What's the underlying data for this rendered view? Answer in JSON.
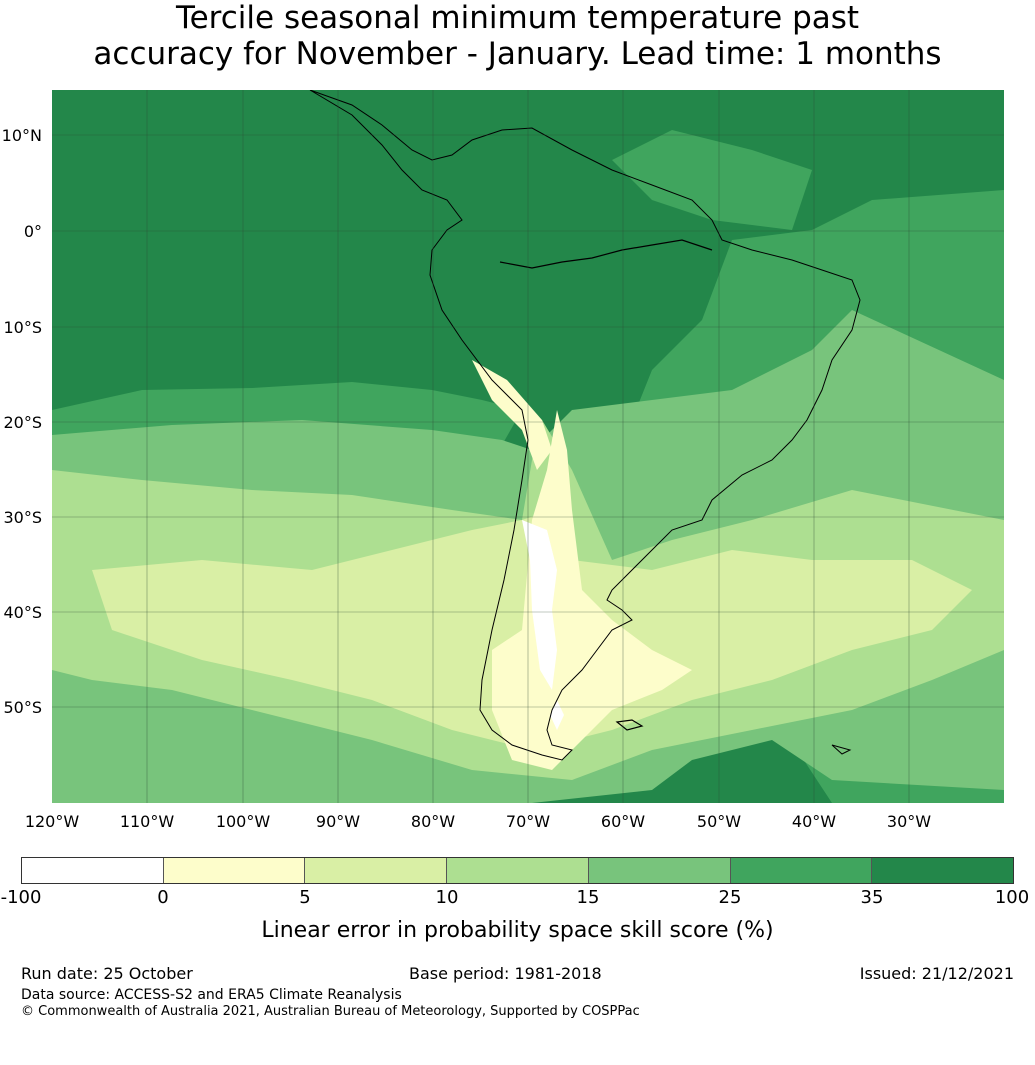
{
  "title": {
    "line1": "Tercile seasonal minimum temperature past",
    "line2": "accuracy for November - January. Lead time: 1 months"
  },
  "map": {
    "lat_ticks": [
      "10°N",
      "0°",
      "10°S",
      "20°S",
      "30°S",
      "40°S",
      "50°S"
    ],
    "lon_ticks": [
      "120°W",
      "110°W",
      "100°W",
      "90°W",
      "80°W",
      "70°W",
      "60°W",
      "50°W",
      "40°W",
      "30°W"
    ],
    "colors": {
      "above_35": "#23874a",
      "25_35": "#40a55e",
      "15_25": "#78c47c",
      "10_15": "#addf91",
      "5_10": "#d9efa5",
      "0_5": "#fdfdcb",
      "below_0": "#ffffff",
      "coastline": "#000000",
      "gridline": "#2f4a36"
    }
  },
  "colorbar": {
    "ticks": [
      "-100",
      "0",
      "5",
      "10",
      "15",
      "25",
      "35",
      "100"
    ],
    "colors": [
      "#ffffff",
      "#fdfdcb",
      "#d9efa5",
      "#addf91",
      "#78c47c",
      "#40a55e",
      "#23874a"
    ],
    "label": "Linear error in probability space skill score (%)"
  },
  "footer": {
    "run_date": "Run date: 25 October",
    "base_period": "Base period: 1981-2018",
    "issued": "Issued: 21/12/2021",
    "data_source": "Data source: ACCESS-S2 and ERA5 Climate Reanalysis",
    "copyright": "© Commonwealth of Australia 2021, Australian Bureau of Meteorology, Supported by COSPPac"
  }
}
